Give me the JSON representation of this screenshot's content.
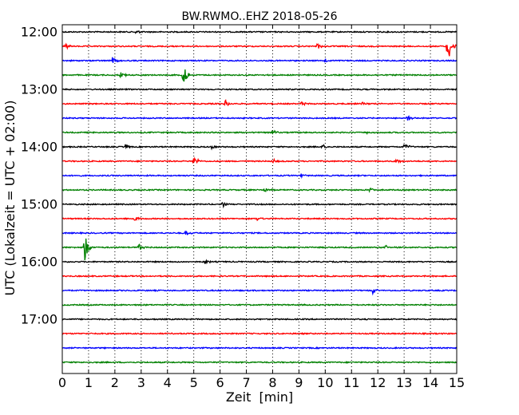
{
  "chart_data": {
    "type": "line",
    "title": "BW.RWMO..EHZ 2018-05-26",
    "xlabel": "Zeit  [min]",
    "ylabel": "UTC (Lokalzeit = UTC + 02:00)",
    "xlim": [
      0,
      15
    ],
    "x_ticks": [
      "0",
      "1",
      "2",
      "3",
      "4",
      "5",
      "6",
      "7",
      "8",
      "9",
      "10",
      "11",
      "12",
      "13",
      "14",
      "15"
    ],
    "grid": "vertical-dotted",
    "row_interval_min": 15,
    "hour_labels": [
      "12:00",
      "13:00",
      "14:00",
      "15:00",
      "16:00",
      "17:00"
    ],
    "row_colors": [
      "#000000",
      "#ff0000",
      "#0000ff",
      "#008000"
    ],
    "traces": [
      {
        "start": "12:00",
        "color": "#000000",
        "events": [
          {
            "t": 2.8,
            "amp": 0.2
          }
        ]
      },
      {
        "start": "12:15",
        "color": "#ff0000",
        "events": [
          {
            "t": 0.1,
            "amp": 0.35
          },
          {
            "t": 9.7,
            "amp": 0.25
          },
          {
            "t": 14.65,
            "amp": 1.4
          }
        ]
      },
      {
        "start": "12:30",
        "color": "#0000ff",
        "events": [
          {
            "t": 1.9,
            "amp": 0.3
          },
          {
            "t": 10.0,
            "amp": 0.15
          }
        ]
      },
      {
        "start": "12:45",
        "color": "#008000",
        "events": [
          {
            "t": 2.2,
            "amp": 0.3
          },
          {
            "t": 4.6,
            "amp": 0.85
          }
        ]
      },
      {
        "start": "13:00",
        "color": "#000000",
        "events": []
      },
      {
        "start": "13:15",
        "color": "#ff0000",
        "events": [
          {
            "t": 6.2,
            "amp": 0.3
          },
          {
            "t": 9.1,
            "amp": 0.2
          },
          {
            "t": 11.4,
            "amp": 0.15
          }
        ]
      },
      {
        "start": "13:30",
        "color": "#0000ff",
        "events": [
          {
            "t": 13.1,
            "amp": 0.25
          }
        ]
      },
      {
        "start": "13:45",
        "color": "#008000",
        "events": [
          {
            "t": 8.0,
            "amp": 0.25
          },
          {
            "t": 11.6,
            "amp": 0.15
          }
        ]
      },
      {
        "start": "14:00",
        "color": "#000000",
        "events": [
          {
            "t": 2.4,
            "amp": 0.2
          },
          {
            "t": 5.7,
            "amp": 0.2
          },
          {
            "t": 9.9,
            "amp": 0.2
          },
          {
            "t": 13.0,
            "amp": 0.35
          }
        ]
      },
      {
        "start": "14:15",
        "color": "#ff0000",
        "events": [
          {
            "t": 5.0,
            "amp": 0.45
          },
          {
            "t": 8.0,
            "amp": 0.2
          },
          {
            "t": 12.7,
            "amp": 0.2
          }
        ]
      },
      {
        "start": "14:30",
        "color": "#0000ff",
        "events": [
          {
            "t": 9.1,
            "amp": 0.15
          }
        ]
      },
      {
        "start": "14:45",
        "color": "#008000",
        "events": [
          {
            "t": 7.7,
            "amp": 0.25
          },
          {
            "t": 11.7,
            "amp": 0.2
          }
        ]
      },
      {
        "start": "15:00",
        "color": "#000000",
        "events": [
          {
            "t": 6.1,
            "amp": 0.2
          }
        ]
      },
      {
        "start": "15:15",
        "color": "#ff0000",
        "events": [
          {
            "t": 2.7,
            "amp": 0.3
          },
          {
            "t": 7.4,
            "amp": 0.2
          }
        ]
      },
      {
        "start": "15:30",
        "color": "#0000ff",
        "events": [
          {
            "t": 4.7,
            "amp": 0.25
          }
        ]
      },
      {
        "start": "15:45",
        "color": "#008000",
        "events": [
          {
            "t": 0.85,
            "amp": 1.2
          },
          {
            "t": 2.9,
            "amp": 0.3
          },
          {
            "t": 12.3,
            "amp": 0.2
          }
        ]
      },
      {
        "start": "16:00",
        "color": "#000000",
        "events": [
          {
            "t": 5.4,
            "amp": 0.3
          }
        ]
      },
      {
        "start": "16:15",
        "color": "#ff0000",
        "events": []
      },
      {
        "start": "16:30",
        "color": "#0000ff",
        "events": [
          {
            "t": 11.8,
            "amp": 0.25
          }
        ]
      },
      {
        "start": "16:45",
        "color": "#008000",
        "events": []
      },
      {
        "start": "17:00",
        "color": "#000000",
        "events": []
      },
      {
        "start": "17:15",
        "color": "#ff0000",
        "events": []
      },
      {
        "start": "17:30",
        "color": "#0000ff",
        "events": []
      },
      {
        "start": "17:45",
        "color": "#008000",
        "events": []
      }
    ]
  }
}
